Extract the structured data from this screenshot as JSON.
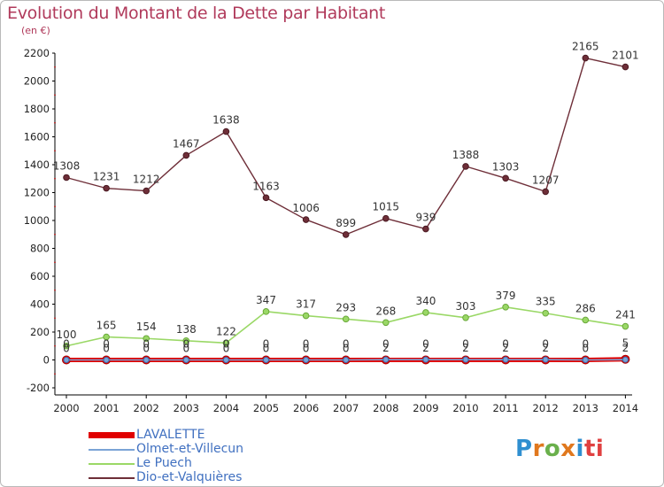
{
  "chart_data": {
    "type": "line",
    "title": "Evolution du Montant de la Dette par Habitant",
    "subtitle": "(en €)",
    "x": [
      "2000",
      "2001",
      "2002",
      "2003",
      "2004",
      "2005",
      "2006",
      "2007",
      "2008",
      "2009",
      "2010",
      "2011",
      "2012",
      "2013",
      "2014"
    ],
    "ylim": [
      -200,
      2200
    ],
    "yticks": [
      -200,
      0,
      200,
      400,
      600,
      800,
      1000,
      1200,
      1400,
      1600,
      1800,
      2000,
      2200
    ],
    "grid": false,
    "legend_position": "bottom-left",
    "series": [
      {
        "name": "LAVALETTE",
        "color": "#e00000",
        "values": [
          0,
          0,
          0,
          0,
          0,
          0,
          0,
          0,
          0,
          0,
          0,
          0,
          0,
          0,
          5
        ],
        "labels": [
          "0",
          "0",
          "0",
          "0",
          "0",
          "0",
          "0",
          "0",
          "0",
          "0",
          "0",
          "0",
          "0",
          "0",
          "5"
        ]
      },
      {
        "name": "Olmet-et-Villecun",
        "color": "#7aa3d6",
        "values": [
          0,
          0,
          0,
          0,
          0,
          0,
          0,
          0,
          2,
          2,
          2,
          2,
          2,
          0,
          2
        ],
        "labels": [
          "0",
          "0",
          "0",
          "0",
          "0",
          "0",
          "0",
          "0",
          "2",
          "2",
          "2",
          "2",
          "2",
          "0",
          "2"
        ]
      },
      {
        "name": "Le Puech",
        "color": "#9ad866",
        "values": [
          100,
          165,
          154,
          138,
          122,
          347,
          317,
          293,
          268,
          340,
          303,
          379,
          335,
          286,
          241
        ],
        "labels": [
          "100",
          "165",
          "154",
          "138",
          "122",
          "347",
          "317",
          "293",
          "268",
          "340",
          "303",
          "379",
          "335",
          "286",
          "241"
        ]
      },
      {
        "name": "Dio-et-Valquières",
        "color": "#6e2e38",
        "values": [
          1308,
          1231,
          1212,
          1467,
          1638,
          1163,
          1006,
          899,
          1015,
          939,
          1388,
          1303,
          1207,
          2165,
          2101
        ],
        "labels": [
          "1308",
          "1231",
          "1212",
          "1467",
          "1638",
          "1163",
          "1006",
          "899",
          "1015",
          "939",
          "1388",
          "1303",
          "1207",
          "2165",
          "2101"
        ]
      }
    ]
  },
  "brand": {
    "letters": [
      "P",
      "r",
      "o",
      "x",
      "i",
      "ti"
    ]
  }
}
